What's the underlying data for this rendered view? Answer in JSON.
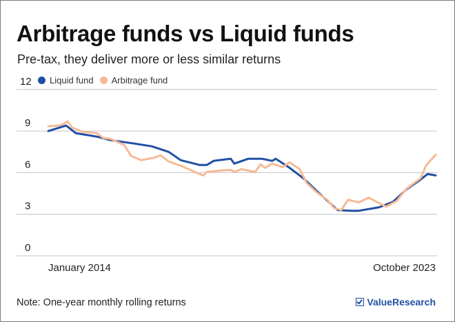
{
  "header": {
    "title": "Arbitrage funds vs Liquid funds",
    "subtitle": "Pre-tax, they deliver more or less similar returns"
  },
  "legend": [
    {
      "label": "Liquid fund",
      "color": "#1f4fa3"
    },
    {
      "label": "Arbitrage fund",
      "color": "#f7b995"
    }
  ],
  "footer": {
    "note": "Note: One-year monthly rolling returns",
    "brand": "ValueResearch"
  },
  "axis": {
    "y_ticks": [
      "12",
      "9",
      "6",
      "3",
      "0"
    ],
    "x_start": "January 2014",
    "x_end": "October 2023"
  },
  "chart_data": {
    "type": "line",
    "title": "Arbitrage funds vs Liquid funds",
    "subtitle": "Pre-tax, they deliver more or less similar returns",
    "xlabel": "",
    "ylabel": "One-year monthly rolling returns (%)",
    "x_range": [
      "January 2014",
      "October 2023"
    ],
    "ylim": [
      0,
      12
    ],
    "y_ticks": [
      0,
      3,
      6,
      9,
      12
    ],
    "grid": true,
    "legend_position": "top-left",
    "note": "Note: One-year monthly rolling returns",
    "x_fraction_note": "x values are fraction of the time span from Jan 2014 (0) to Oct 2023 (1)",
    "series": [
      {
        "name": "Liquid fund",
        "color": "#1f4fa3",
        "points": [
          [
            0.0,
            9.0
          ],
          [
            0.046,
            9.4
          ],
          [
            0.071,
            8.85
          ],
          [
            0.125,
            8.6
          ],
          [
            0.16,
            8.35
          ],
          [
            0.222,
            8.1
          ],
          [
            0.267,
            7.9
          ],
          [
            0.311,
            7.5
          ],
          [
            0.342,
            6.9
          ],
          [
            0.391,
            6.55
          ],
          [
            0.409,
            6.55
          ],
          [
            0.427,
            6.85
          ],
          [
            0.471,
            7.0
          ],
          [
            0.48,
            6.65
          ],
          [
            0.516,
            7.0
          ],
          [
            0.552,
            7.0
          ],
          [
            0.578,
            6.85
          ],
          [
            0.587,
            7.0
          ],
          [
            0.623,
            6.35
          ],
          [
            0.658,
            5.6
          ],
          [
            0.694,
            4.65
          ],
          [
            0.747,
            3.3
          ],
          [
            0.783,
            3.25
          ],
          [
            0.801,
            3.25
          ],
          [
            0.854,
            3.5
          ],
          [
            0.89,
            3.9
          ],
          [
            0.925,
            4.8
          ],
          [
            0.961,
            5.5
          ],
          [
            0.979,
            5.9
          ],
          [
            1.0,
            5.8
          ]
        ]
      },
      {
        "name": "Arbitrage fund",
        "color": "#f7b995",
        "points": [
          [
            0.0,
            9.35
          ],
          [
            0.027,
            9.4
          ],
          [
            0.039,
            9.5
          ],
          [
            0.05,
            9.7
          ],
          [
            0.062,
            9.25
          ],
          [
            0.089,
            8.95
          ],
          [
            0.125,
            8.85
          ],
          [
            0.142,
            8.5
          ],
          [
            0.16,
            8.45
          ],
          [
            0.196,
            8.0
          ],
          [
            0.214,
            7.2
          ],
          [
            0.24,
            6.9
          ],
          [
            0.276,
            7.1
          ],
          [
            0.29,
            7.25
          ],
          [
            0.311,
            6.8
          ],
          [
            0.342,
            6.5
          ],
          [
            0.382,
            6.0
          ],
          [
            0.4,
            5.8
          ],
          [
            0.409,
            6.05
          ],
          [
            0.445,
            6.15
          ],
          [
            0.471,
            6.2
          ],
          [
            0.48,
            6.05
          ],
          [
            0.498,
            6.25
          ],
          [
            0.534,
            6.05
          ],
          [
            0.548,
            6.6
          ],
          [
            0.56,
            6.35
          ],
          [
            0.578,
            6.65
          ],
          [
            0.605,
            6.4
          ],
          [
            0.623,
            6.75
          ],
          [
            0.649,
            6.25
          ],
          [
            0.667,
            5.25
          ],
          [
            0.694,
            4.55
          ],
          [
            0.72,
            4.05
          ],
          [
            0.738,
            3.45
          ],
          [
            0.756,
            3.3
          ],
          [
            0.774,
            4.05
          ],
          [
            0.801,
            3.85
          ],
          [
            0.827,
            4.2
          ],
          [
            0.854,
            3.8
          ],
          [
            0.872,
            3.55
          ],
          [
            0.899,
            3.95
          ],
          [
            0.925,
            4.85
          ],
          [
            0.961,
            5.6
          ],
          [
            0.975,
            6.5
          ],
          [
            1.0,
            7.3
          ]
        ]
      }
    ]
  }
}
